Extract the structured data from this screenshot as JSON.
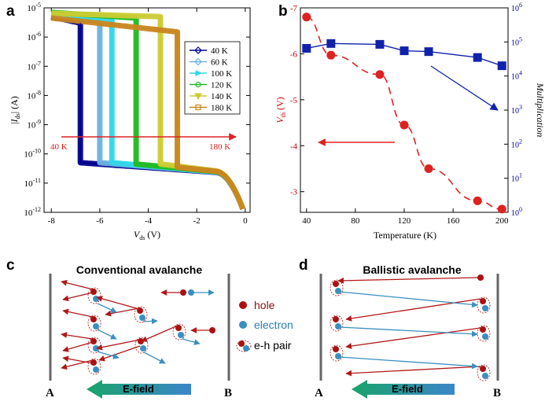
{
  "panels": {
    "a": {
      "letter": "a",
      "chart_data": {
        "type": "line",
        "title": "",
        "xlabel_main": "V",
        "xlabel_sub": "ds",
        "xlabel_unit": " (V)",
        "ylabel": "|I_ds| (A)",
        "xlim": [
          -8.3,
          0.2
        ],
        "ylim_log10": [
          -12,
          -5
        ],
        "xticks": [
          -8,
          -6,
          -4,
          -2,
          0
        ],
        "yticks_exp": [
          -5,
          -6,
          -7,
          -8,
          -9,
          -10,
          -11,
          -12
        ],
        "series": [
          {
            "name": "40 K",
            "color": "#00008b",
            "marker": "diamond",
            "vth": -6.8,
            "i_on_left": 5e-06,
            "i_on_right": 3e-06,
            "i_off_left": 5e-11
          },
          {
            "name": "60 K",
            "color": "#6db3e3",
            "marker": "diamond",
            "vth": -6.0,
            "i_on_left": 6e-06,
            "i_on_right": 3.5e-06,
            "i_off_left": 5e-11
          },
          {
            "name": "100 K",
            "color": "#33d6e8",
            "marker": "triangle-right",
            "vth": -5.5,
            "i_on_left": 6.5e-06,
            "i_on_right": 4e-06,
            "i_off_left": 5e-11
          },
          {
            "name": "120 K",
            "color": "#22bb22",
            "marker": "circle",
            "vth": -4.5,
            "i_on_left": 7e-06,
            "i_on_right": 4.5e-06,
            "i_off_left": 4.5e-11
          },
          {
            "name": "140 K",
            "color": "#cccc33",
            "marker": "triangle-down",
            "vth": -3.5,
            "i_on_left": 6.5e-06,
            "i_on_right": 5e-06,
            "i_off_left": 4.5e-11
          },
          {
            "name": "180 K",
            "color": "#c8861f",
            "marker": "square",
            "vth": -2.8,
            "i_on_left": 4.5e-06,
            "i_on_right": 1.5e-06,
            "i_off_left": 3.5e-11
          }
        ],
        "legend_position": "top-right",
        "annotation": {
          "left": "40 K",
          "right": "180 K"
        }
      }
    },
    "b": {
      "letter": "b",
      "chart_data": {
        "type": "line",
        "xlabel": "Temperature (K)",
        "ylabel_left_main": "V",
        "ylabel_left_sub": "th",
        "ylabel_left_unit": " (V)",
        "ylabel_right": "Multiplication",
        "xlim": [
          35,
          205
        ],
        "xticks": [
          40,
          80,
          120,
          160,
          200
        ],
        "ylim_left": [
          -2.55,
          -7.0
        ],
        "yticks_left": [
          -7,
          -6,
          -5,
          -4,
          -3
        ],
        "ylim_right_log10": [
          0,
          6
        ],
        "yticks_right_exp": [
          0,
          1,
          2,
          3,
          4,
          5,
          6
        ],
        "series": [
          {
            "name": "Vth",
            "axis": "left",
            "color": "#dd2222",
            "marker": "circle",
            "style": "dashed",
            "x": [
              40,
              60,
              100,
              120,
              140,
              180,
              200
            ],
            "y": [
              -6.8,
              -5.97,
              -5.55,
              -4.45,
              -3.5,
              -2.8,
              -2.62
            ]
          },
          {
            "name": "Multiplication",
            "axis": "right",
            "color": "#1122aa",
            "marker": "square",
            "style": "solid",
            "x": [
              40,
              60,
              100,
              120,
              140,
              180,
              200
            ],
            "y": [
              65000,
              90000,
              85000,
              55000,
              52000,
              35000,
              20000
            ]
          }
        ]
      }
    },
    "c": {
      "letter": "c",
      "title": "Conventional avalanche",
      "left_electrode": "A",
      "right_electrode": "B",
      "efield": "E-field"
    },
    "d": {
      "letter": "d",
      "title": "Ballistic avalanche",
      "left_electrode": "A",
      "right_electrode": "B",
      "efield": "E-field"
    },
    "legend": {
      "hole": "hole",
      "electron": "electron",
      "pair": "e-h pair"
    },
    "colors": {
      "hole": "#aa1111",
      "electron": "#3a8fc0",
      "arrow_hole": "#b01818",
      "arrow_electron": "#3a8fc0"
    }
  }
}
